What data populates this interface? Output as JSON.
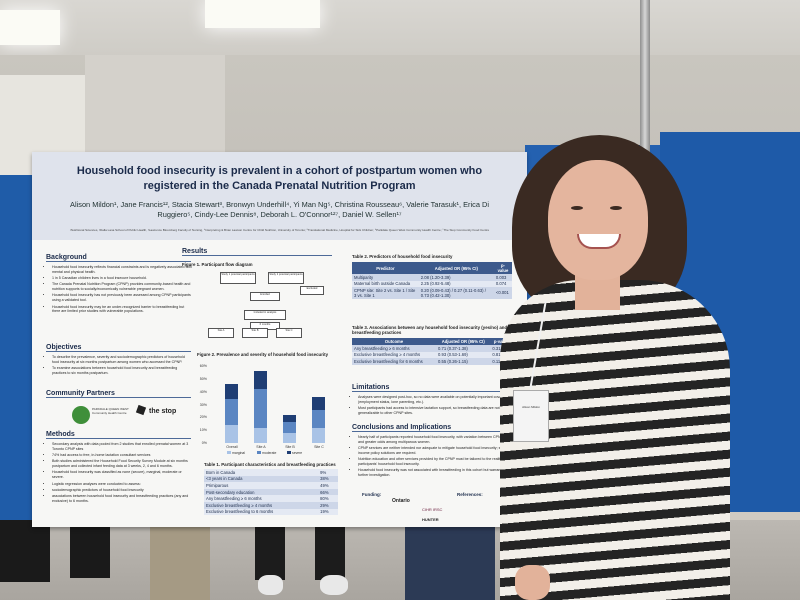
{
  "poster": {
    "title": "Household food insecurity is prevalent in a cohort of postpartum women who registered in the Canada Prenatal Nutrition Program",
    "authors": "Alison Mildon¹, Jane Francis¹², Stacia Stewart³, Bronwyn Underhill⁴, Yi Man Ng⁵, Christina Rousseau⁶, Valerie Tarasuk¹, Erica Di Ruggiero⁵, Cindy-Lee Dennis⁸, Deborah L. O'Connor¹²⁷, Daniel W. Sellen¹⁷",
    "affiliations": "¹Nutritional Sciences, ²Dalla Lana School of Public Health, ³Lawrence Bloomberg Faculty of Nursing, ⁴Interpreting & Brian Lawson Centre for Child Nutrition, University of Toronto; ⁵Translational Medicine, Hospital for Sick Children; ⁶Parkdale Queen West Community Health Centre; ⁷The Stop Community Food Centre",
    "sections": {
      "background": {
        "heading": "Background",
        "items": [
          "Household food insecurity reflects financial constraints and is negatively associated with mental and physical health.",
          "1 in 5 Canadian children lives in a food insecure household.",
          "The Canada Prenatal Nutrition Program (CPNP) provides community-based health and nutrition supports to socially/economically vulnerable pregnant women.",
          "Household food insecurity has not previously been assessed among CPNP participants using a validated tool.",
          "Household food insecurity may be an under-recognized barrier to breastfeeding but there are limited prior studies with vulnerable populations."
        ]
      },
      "objectives": {
        "heading": "Objectives",
        "items": [
          "To describe the prevalence, severity and sociodemographic predictors of household food insecurity at six months postpartum among women who accessed the CPNP.",
          "To examine associations between household food insecurity and breastfeeding practices to six months postpartum."
        ]
      },
      "partners": {
        "heading": "Community Partners",
        "partner_1": "PARKDALE QUEEN WEST Community Health Centre",
        "partner_2": "the stop"
      },
      "methods": {
        "heading": "Methods",
        "items": [
          "Secondary analysis with data pooled from 2 studies that enrolled prenatal women at 3 Toronto CPNP sites",
          "74% had access to free, in-home lactation consultant services",
          "Both studies administered the Household Food Security Survey Module at six months postpartum and collected infant feeding data at 3 weeks, 2, 4 and 6 months.",
          "Household food insecurity was classified as none (secure), marginal, moderate or severe.",
          "Logistic regression analyses were conducted to assess:",
          "sociodemographic predictors of household food insecurity",
          "associations between household food insecurity and breastfeeding practices (any and exclusive) to 6 months."
        ]
      },
      "results": {
        "heading": "Results",
        "fig1_caption": "Figure 1. Participant flow diagram",
        "flow_boxes": [
          "Study 1 potential participants",
          "Study 2 potential participants",
          "Enrolled",
          "Excluded",
          "Included in analysis",
          "6 months",
          "Site A",
          "Site B",
          "Site C"
        ],
        "fig2_caption": "Figure 2. Prevalence and severity of household food insecurity",
        "legend": [
          "marginal",
          "moderate",
          "severe"
        ],
        "table1_caption": "Table 1. Participant characteristics and breastfeeding practices",
        "table1_rows": [
          [
            "Born in Canada",
            "9%"
          ],
          [
            "<3 years in Canada",
            "38%"
          ],
          [
            "Primiparous",
            "49%"
          ],
          [
            "Post-secondary education",
            "66%"
          ],
          [
            "Any breastfeeding ≥ 6 months",
            "80%"
          ],
          [
            "Exclusive breastfeeding ≥ 4 months",
            "29%"
          ],
          [
            "Exclusive breastfeeding to 6 months",
            "19%"
          ]
        ]
      },
      "table2": {
        "caption": "Table 2. Predictors of household food insecurity",
        "headers": [
          "Predictor",
          "Adjusted OR (95% CI)",
          "p-value"
        ],
        "rows": [
          [
            "Multiparity",
            "2.08 (1.20-3.39)",
            "0.003"
          ],
          [
            "Maternal birth outside Canada",
            "2.25 (0.92-5.48)",
            "0.074"
          ],
          [
            "CPNP site: Site 2 vs. Site 1 / Site 3 vs. Site 1",
            "0.20 (0.09-0.43) / 0.27 (0.11-0.63) / 0.73 (0.42-1.30)",
            "<0.001"
          ]
        ]
      },
      "table3": {
        "caption": "Table 3. Associations between any household food insecurity (yes/no) and breastfeeding practices",
        "headers": [
          "Outcome",
          "Adjusted OR (95% CI)",
          "p-value"
        ],
        "rows": [
          [
            "Any breastfeeding ≥ 6 months",
            "0.71 (0.37-1.38)",
            "0.31"
          ],
          [
            "Exclusive breastfeeding ≥ 4 months",
            "0.93 (0.53-1.69)",
            "0.81"
          ],
          [
            "Exclusive breastfeeding for 6 months",
            "0.55 (0.26-1.15)",
            "0.11"
          ]
        ]
      },
      "limitations": {
        "heading": "Limitations",
        "items": [
          "Analyses were designed post-hoc, so no data were available on potentially important covariates (employment status, lone parenting, etc.).",
          "Most participants had access to intensive lactation support, so breastfeeding data are not generalizable to other CPNP sites."
        ]
      },
      "conclusions": {
        "heading": "Conclusions and Implications",
        "items": [
          "Nearly half of participants reported household food insecurity, with variation between CPNP sites and greater odds among multiparous women.",
          "CPNP services are neither intended nor adequate to mitigate household food insecurity; stronger income policy solutions are required.",
          "Nutrition education and other services provided by the CPNP must be tailored to the reality of participants' household food insecurity.",
          "Household food insecurity was not associated with breastfeeding in this cohort but warrants further investigation."
        ]
      },
      "funding": {
        "heading": "Funding:",
        "logos": [
          "Ontario",
          "CIHR IRSC",
          "HUNTER"
        ]
      },
      "references": {
        "heading": "References:"
      }
    }
  },
  "badge": {
    "text": "Alison Mildon"
  },
  "chart_data": {
    "type": "bar",
    "title": "",
    "categories": [
      "Overall",
      "Site A",
      "Site B",
      "Site C"
    ],
    "series": [
      {
        "name": "marginal",
        "values": [
          14,
          12,
          8,
          12
        ]
      },
      {
        "name": "moderate",
        "values": [
          20,
          30,
          8,
          14
        ]
      },
      {
        "name": "severe",
        "values": [
          12,
          14,
          6,
          10
        ]
      }
    ],
    "ylim": [
      0,
      60
    ],
    "yticks": [
      "0%",
      "10%",
      "20%",
      "30%",
      "40%",
      "50%",
      "60%"
    ],
    "colors": [
      "#a9c3e6",
      "#5b86c2",
      "#1f3e74"
    ]
  },
  "colors": {
    "poster_header": "#dfe3ec",
    "table_header": "#3d5a8c",
    "board_blue": "#1e5aa8"
  }
}
